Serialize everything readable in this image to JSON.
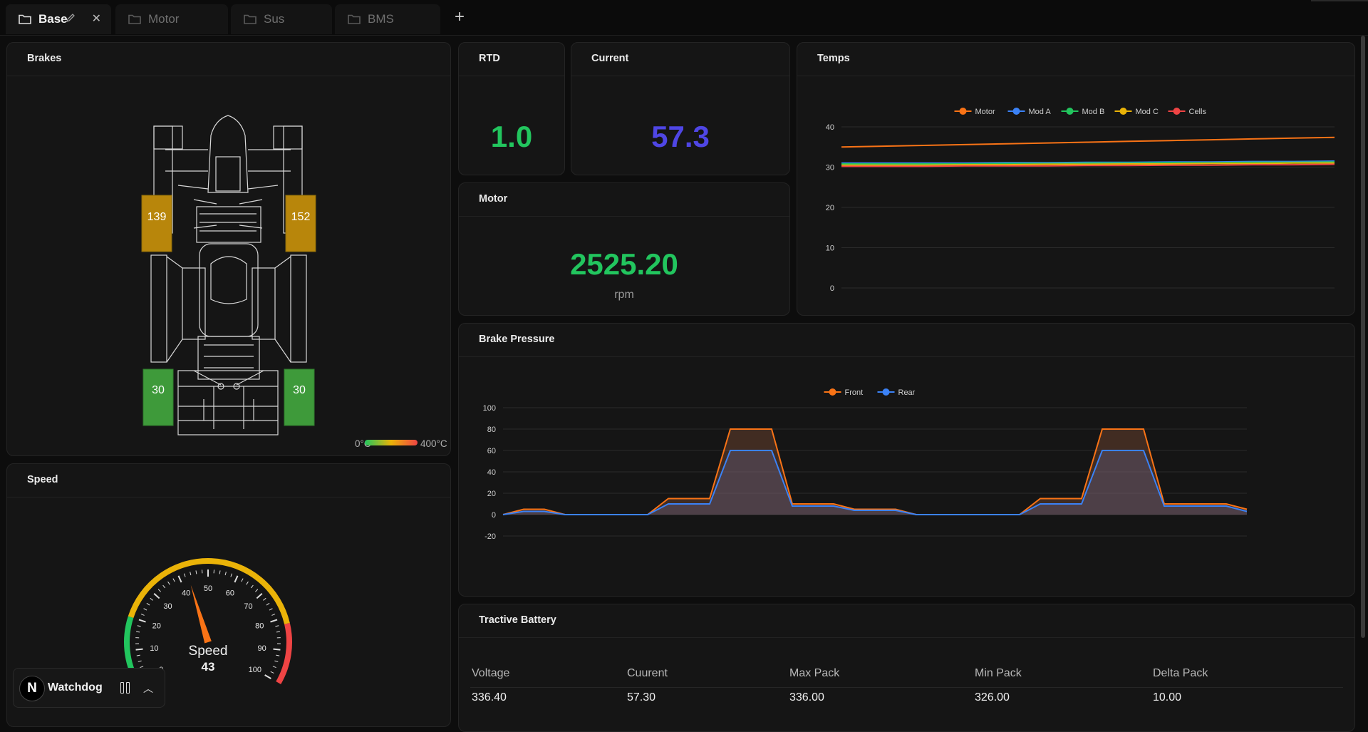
{
  "tabs": [
    {
      "label": "Base",
      "active": true
    },
    {
      "label": "Motor",
      "active": false
    },
    {
      "label": "Sus",
      "active": false
    },
    {
      "label": "BMS",
      "active": false
    }
  ],
  "add_tab_label": "+",
  "brakes": {
    "title": "Brakes",
    "temps": {
      "front_left": "139",
      "front_right": "152",
      "rear_left": "30",
      "rear_right": "30"
    },
    "temp_colors": {
      "front": "#b8860b",
      "rear": "#3e9a3a"
    },
    "scale_min": "0°C",
    "scale_max": "400°C"
  },
  "rtd": {
    "title": "RTD",
    "value": "1.0",
    "color": "#22c55e"
  },
  "current": {
    "title": "Current",
    "value": "57.3",
    "color": "#4f46e5"
  },
  "motor": {
    "title": "Motor",
    "value": "2525.20",
    "unit": "rpm",
    "color": "#22c55e"
  },
  "temps": {
    "title": "Temps"
  },
  "brake_pressure": {
    "title": "Brake Pressure"
  },
  "speed": {
    "title": "Speed",
    "gauge_label": "Speed",
    "value": "43",
    "ticks": [
      "0",
      "10",
      "20",
      "30",
      "40",
      "50",
      "60",
      "70",
      "80",
      "90",
      "100"
    ],
    "colors": {
      "green": "#22c55e",
      "yellow": "#eab308",
      "red": "#ef4444",
      "needle": "#f97316"
    }
  },
  "tractive_battery": {
    "title": "Tractive Battery",
    "columns": [
      "Voltage",
      "Cuurent",
      "Max Pack",
      "Min Pack",
      "Delta Pack"
    ],
    "values": [
      "336.40",
      "57.30",
      "336.00",
      "326.00",
      "10.00"
    ]
  },
  "watchdog": {
    "logo": "N",
    "label": "Watchdog"
  },
  "chart_data": [
    {
      "type": "line",
      "title": "Temps",
      "ylim": [
        0,
        40
      ],
      "yticks": [
        "0",
        "10",
        "20",
        "30",
        "40"
      ],
      "legend_position": "top-center",
      "grid": true,
      "series": [
        {
          "name": "Motor",
          "color": "#f97316",
          "values": [
            35,
            35.2,
            35.4,
            35.6,
            35.8,
            36,
            36.2,
            36.4,
            36.6,
            36.8,
            37,
            37.2,
            37.4
          ]
        },
        {
          "name": "Mod A",
          "color": "#3b82f6",
          "values": [
            31,
            31,
            31,
            31,
            31.1,
            31.1,
            31.2,
            31.2,
            31.3,
            31.3,
            31.4,
            31.4,
            31.5
          ]
        },
        {
          "name": "Mod B",
          "color": "#22c55e",
          "values": [
            30.8,
            30.8,
            30.8,
            30.8,
            30.9,
            30.9,
            31,
            31,
            31.1,
            31.1,
            31.2,
            31.2,
            31.3
          ]
        },
        {
          "name": "Mod C",
          "color": "#eab308",
          "values": [
            30.5,
            30.5,
            30.5,
            30.6,
            30.6,
            30.7,
            30.7,
            30.8,
            30.8,
            30.9,
            30.9,
            31,
            31
          ]
        },
        {
          "name": "Cells",
          "color": "#ef4444",
          "values": [
            30.2,
            30.2,
            30.2,
            30.3,
            30.3,
            30.3,
            30.4,
            30.4,
            30.5,
            30.5,
            30.6,
            30.6,
            30.7
          ]
        }
      ]
    },
    {
      "type": "area",
      "title": "Brake Pressure",
      "ylim": [
        -20,
        100
      ],
      "yticks": [
        "-20",
        "0",
        "20",
        "40",
        "60",
        "80",
        "100"
      ],
      "legend_position": "top-center",
      "grid": true,
      "series": [
        {
          "name": "Front",
          "color": "#f97316",
          "values": [
            0,
            5,
            5,
            0,
            0,
            0,
            0,
            0,
            15,
            15,
            15,
            80,
            80,
            80,
            10,
            10,
            10,
            5,
            5,
            5,
            0,
            0,
            0,
            0,
            0,
            0,
            15,
            15,
            15,
            80,
            80,
            80,
            10,
            10,
            10,
            10,
            5
          ]
        },
        {
          "name": "Rear",
          "color": "#3b82f6",
          "values": [
            0,
            3,
            3,
            0,
            0,
            0,
            0,
            0,
            10,
            10,
            10,
            60,
            60,
            60,
            8,
            8,
            8,
            4,
            4,
            4,
            0,
            0,
            0,
            0,
            0,
            0,
            10,
            10,
            10,
            60,
            60,
            60,
            8,
            8,
            8,
            8,
            3
          ]
        }
      ]
    }
  ]
}
